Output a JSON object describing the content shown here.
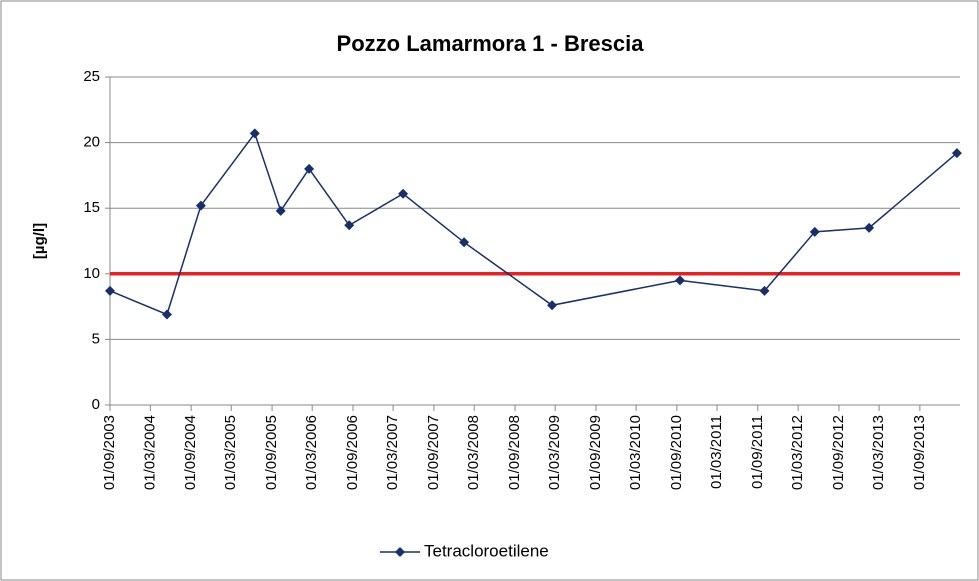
{
  "chart_data": {
    "type": "line",
    "title": "Pozzo Lamarmora 1 - Brescia",
    "y_label": "[µg/l]",
    "x": [
      "2003-09-01",
      "2004-05-15",
      "2004-10-15",
      "2005-06-15",
      "2005-10-10",
      "2006-02-15",
      "2006-08-15",
      "2007-04-15",
      "2008-01-15",
      "2009-02-15",
      "2010-09-15",
      "2011-10-01",
      "2012-05-15",
      "2013-01-15",
      "2014-02-15"
    ],
    "series": [
      {
        "name": "Tetracloroetilene",
        "color": "#17306b",
        "values": [
          8.7,
          6.9,
          15.2,
          20.7,
          14.8,
          18.0,
          13.7,
          16.1,
          12.4,
          7.6,
          9.5,
          8.7,
          13.2,
          13.5,
          19.2
        ]
      }
    ],
    "threshold": 10,
    "threshold_color": "#e8201f",
    "xlim": [
      "2003-09-01",
      "2014-03-01"
    ],
    "xticks": [
      {
        "value": "2003-09-01",
        "label": "01/09/2003"
      },
      {
        "value": "2004-03-01",
        "label": "01/03/2004"
      },
      {
        "value": "2004-09-01",
        "label": "01/09/2004"
      },
      {
        "value": "2005-03-01",
        "label": "01/03/2005"
      },
      {
        "value": "2005-09-01",
        "label": "01/09/2005"
      },
      {
        "value": "2006-03-01",
        "label": "01/03/2006"
      },
      {
        "value": "2006-09-01",
        "label": "01/09/2006"
      },
      {
        "value": "2007-03-01",
        "label": "01/03/2007"
      },
      {
        "value": "2007-09-01",
        "label": "01/09/2007"
      },
      {
        "value": "2008-03-01",
        "label": "01/03/2008"
      },
      {
        "value": "2008-09-01",
        "label": "01/09/2008"
      },
      {
        "value": "2009-03-01",
        "label": "01/03/2009"
      },
      {
        "value": "2009-09-01",
        "label": "01/09/2009"
      },
      {
        "value": "2010-03-01",
        "label": "01/03/2010"
      },
      {
        "value": "2010-09-01",
        "label": "01/09/2010"
      },
      {
        "value": "2011-03-01",
        "label": "01/03/2011"
      },
      {
        "value": "2011-09-01",
        "label": "01/09/2011"
      },
      {
        "value": "2012-03-01",
        "label": "01/03/2012"
      },
      {
        "value": "2012-09-01",
        "label": "01/09/2012"
      },
      {
        "value": "2013-03-01",
        "label": "01/03/2013"
      },
      {
        "value": "2013-09-01",
        "label": "01/09/2013"
      }
    ],
    "ylim": [
      0,
      25
    ],
    "yticks": [
      0,
      5,
      10,
      15,
      20,
      25
    ],
    "grid": true,
    "legend": "bottom"
  }
}
